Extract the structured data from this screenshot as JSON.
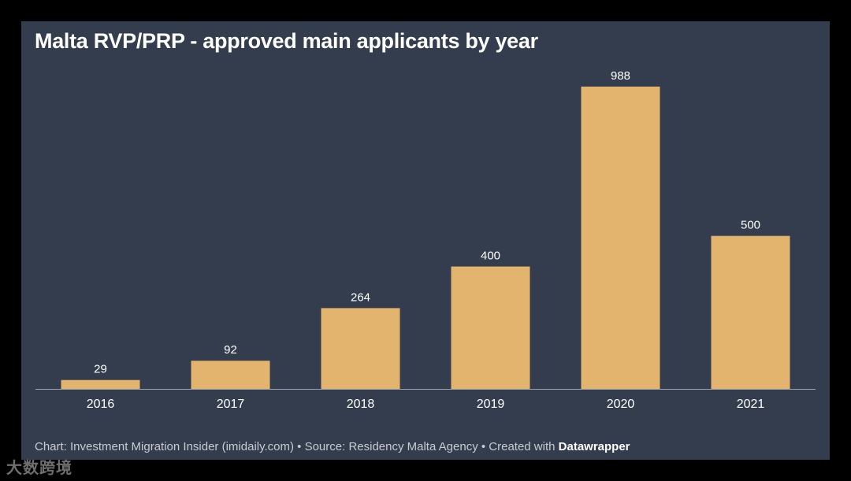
{
  "colors": {
    "background": "#333d4d",
    "bar": "#e3b46e",
    "text": "#ffffff",
    "axis": "#9aa1ab"
  },
  "chart_data": {
    "type": "bar",
    "title": "Malta RVP/PRP - approved main applicants by year",
    "categories": [
      "2016",
      "2017",
      "2018",
      "2019",
      "2020",
      "2021"
    ],
    "values": [
      29,
      92,
      264,
      400,
      988,
      500
    ],
    "xlabel": "",
    "ylabel": "",
    "ylim": [
      0,
      988
    ],
    "grid": false,
    "legend": "none"
  },
  "footer": {
    "prefix": "Chart: Investment Migration Insider (imidaily.com) • Source: Residency Malta Agency • Created with ",
    "tool": "Datawrapper"
  },
  "watermark": {
    "text": "大数跨境"
  }
}
